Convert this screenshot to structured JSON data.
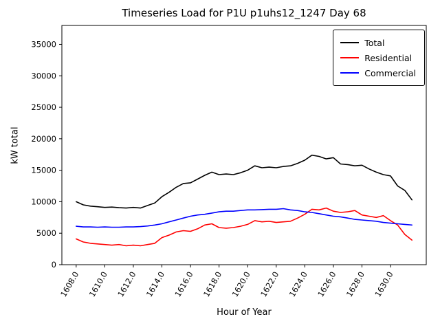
{
  "chart_data": {
    "type": "line",
    "title": "Timeseries Load for P1U p1uhs12_1247  Day 68",
    "xlabel": "Hour of Year",
    "ylabel": "kW total",
    "xlim": [
      1607.0,
      1632.5
    ],
    "ylim": [
      0,
      38000
    ],
    "grid": false,
    "legend_position": "upper-right",
    "xticks": [
      1608,
      1610,
      1612,
      1614,
      1616,
      1618,
      1620,
      1622,
      1624,
      1626,
      1628,
      1630
    ],
    "xtick_labels": [
      "1608.0",
      "1610.0",
      "1612.0",
      "1614.0",
      "1616.0",
      "1618.0",
      "1620.0",
      "1622.0",
      "1624.0",
      "1626.0",
      "1628.0",
      "1630.0"
    ],
    "yticks": [
      0,
      5000,
      10000,
      15000,
      20000,
      25000,
      30000,
      35000
    ],
    "ytick_labels": [
      "0",
      "5000",
      "10000",
      "15000",
      "20000",
      "25000",
      "30000",
      "35000"
    ],
    "x": [
      1608.0,
      1608.5,
      1609.0,
      1609.5,
      1610.0,
      1610.5,
      1611.0,
      1611.5,
      1612.0,
      1612.5,
      1613.0,
      1613.5,
      1614.0,
      1614.5,
      1615.0,
      1615.5,
      1616.0,
      1616.5,
      1617.0,
      1617.5,
      1618.0,
      1618.5,
      1619.0,
      1619.5,
      1620.0,
      1620.5,
      1621.0,
      1621.5,
      1622.0,
      1622.5,
      1623.0,
      1623.5,
      1624.0,
      1624.5,
      1625.0,
      1625.5,
      1626.0,
      1626.5,
      1627.0,
      1627.5,
      1628.0,
      1628.5,
      1629.0,
      1629.5,
      1630.0,
      1630.5,
      1631.0,
      1631.5
    ],
    "series": [
      {
        "name": "Total",
        "color": "#000000",
        "values": [
          10000,
          9500,
          9300,
          9200,
          9100,
          9150,
          9050,
          9000,
          9100,
          9000,
          9400,
          9800,
          10800,
          11500,
          12300,
          12900,
          13000,
          13600,
          14200,
          14700,
          14300,
          14400,
          14300,
          14600,
          15000,
          15700,
          15400,
          15500,
          15400,
          15600,
          15700,
          16100,
          16600,
          17400,
          17200,
          16800,
          17000,
          16000,
          15900,
          15700,
          15800,
          15200,
          14700,
          14300,
          14100,
          12500,
          11800,
          10300
        ]
      },
      {
        "name": "Residential",
        "color": "#ff0000",
        "values": [
          4100,
          3600,
          3400,
          3300,
          3200,
          3100,
          3200,
          3000,
          3100,
          3000,
          3200,
          3400,
          4300,
          4700,
          5200,
          5400,
          5300,
          5700,
          6300,
          6500,
          5900,
          5800,
          5900,
          6100,
          6400,
          7000,
          6800,
          6900,
          6700,
          6800,
          6900,
          7400,
          8000,
          8800,
          8700,
          9000,
          8500,
          8300,
          8400,
          8600,
          7900,
          7700,
          7500,
          7800,
          7000,
          6300,
          4800,
          3900
        ]
      },
      {
        "name": "Commercial",
        "color": "#0000ff",
        "values": [
          6100,
          6000,
          6000,
          5950,
          6000,
          5950,
          5950,
          6000,
          6000,
          6050,
          6150,
          6300,
          6500,
          6800,
          7100,
          7400,
          7700,
          7900,
          8000,
          8200,
          8400,
          8500,
          8500,
          8600,
          8700,
          8700,
          8750,
          8800,
          8800,
          8900,
          8700,
          8600,
          8400,
          8300,
          8100,
          7900,
          7700,
          7600,
          7400,
          7200,
          7100,
          7000,
          6900,
          6700,
          6600,
          6500,
          6400,
          6300
        ]
      }
    ]
  }
}
